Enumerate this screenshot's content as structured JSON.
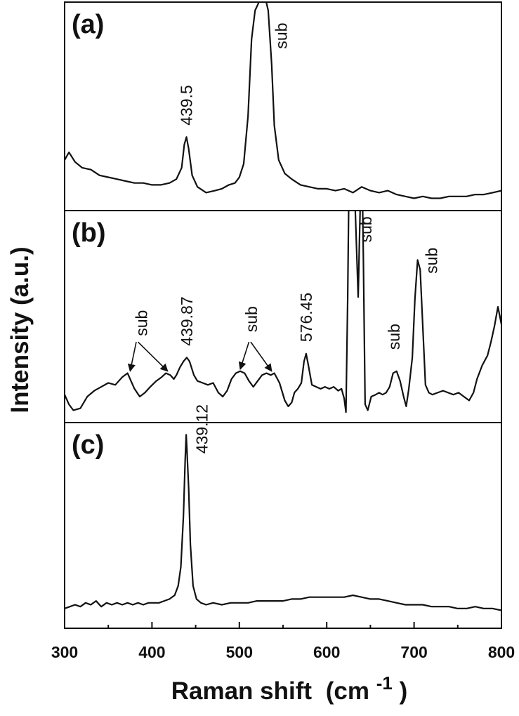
{
  "chart_data": {
    "type": "line",
    "xlabel": "Raman shift",
    "xlabel_unit": "(cm",
    "xlabel_unit_exp": "-1",
    "xlabel_unit_close": ")",
    "ylabel": "Intensity (a.u.)",
    "xlim": [
      300,
      800
    ],
    "xticks": [
      300,
      400,
      500,
      600,
      700,
      800
    ],
    "grid": false,
    "panels": [
      {
        "label": "(a)",
        "ylim": [
          0,
          100
        ],
        "points": [
          [
            300,
            22
          ],
          [
            305,
            26
          ],
          [
            312,
            21
          ],
          [
            320,
            18
          ],
          [
            330,
            17
          ],
          [
            340,
            14
          ],
          [
            350,
            13
          ],
          [
            360,
            12
          ],
          [
            370,
            11
          ],
          [
            380,
            10
          ],
          [
            390,
            10
          ],
          [
            400,
            9
          ],
          [
            410,
            9
          ],
          [
            420,
            10
          ],
          [
            428,
            12
          ],
          [
            434,
            18
          ],
          [
            437,
            30
          ],
          [
            439.5,
            34
          ],
          [
            442,
            28
          ],
          [
            446,
            14
          ],
          [
            452,
            8
          ],
          [
            462,
            5
          ],
          [
            472,
            6
          ],
          [
            480,
            7
          ],
          [
            488,
            9
          ],
          [
            495,
            10
          ],
          [
            500,
            13
          ],
          [
            505,
            20
          ],
          [
            510,
            45
          ],
          [
            514,
            85
          ],
          [
            518,
            100
          ],
          [
            522,
            104
          ],
          [
            528,
            110
          ],
          [
            533,
            100
          ],
          [
            537,
            72
          ],
          [
            540,
            40
          ],
          [
            545,
            22
          ],
          [
            552,
            15
          ],
          [
            560,
            12
          ],
          [
            570,
            9
          ],
          [
            580,
            8
          ],
          [
            590,
            7
          ],
          [
            600,
            7
          ],
          [
            610,
            6
          ],
          [
            620,
            7
          ],
          [
            630,
            5
          ],
          [
            640,
            8
          ],
          [
            650,
            6
          ],
          [
            660,
            5
          ],
          [
            670,
            6
          ],
          [
            680,
            4
          ],
          [
            690,
            3
          ],
          [
            700,
            2
          ],
          [
            710,
            3
          ],
          [
            720,
            2
          ],
          [
            730,
            2
          ],
          [
            740,
            3
          ],
          [
            750,
            3
          ],
          [
            760,
            3
          ],
          [
            770,
            4
          ],
          [
            780,
            4
          ],
          [
            790,
            5
          ],
          [
            800,
            6
          ]
        ],
        "annotations": [
          {
            "text": "439.5",
            "x": 439.5,
            "y": 40
          },
          {
            "text": "sub",
            "x": 548,
            "y": 80
          }
        ]
      },
      {
        "label": "(b)",
        "ylim": [
          0,
          100
        ],
        "points": [
          [
            300,
            10
          ],
          [
            305,
            5
          ],
          [
            310,
            2
          ],
          [
            318,
            3
          ],
          [
            326,
            9
          ],
          [
            334,
            12
          ],
          [
            342,
            14
          ],
          [
            350,
            16
          ],
          [
            358,
            15
          ],
          [
            366,
            19
          ],
          [
            372,
            21
          ],
          [
            376,
            17
          ],
          [
            380,
            13
          ],
          [
            386,
            9
          ],
          [
            392,
            11
          ],
          [
            398,
            14
          ],
          [
            405,
            17
          ],
          [
            411,
            19
          ],
          [
            416,
            21
          ],
          [
            421,
            20
          ],
          [
            425,
            18
          ],
          [
            428,
            20
          ],
          [
            432,
            24
          ],
          [
            436,
            27
          ],
          [
            439.87,
            29
          ],
          [
            443,
            27
          ],
          [
            448,
            20
          ],
          [
            452,
            17
          ],
          [
            458,
            16
          ],
          [
            464,
            15
          ],
          [
            470,
            16
          ],
          [
            476,
            11
          ],
          [
            481,
            9
          ],
          [
            486,
            12
          ],
          [
            491,
            18
          ],
          [
            496,
            21
          ],
          [
            501,
            22
          ],
          [
            506,
            21
          ],
          [
            511,
            17
          ],
          [
            516,
            14
          ],
          [
            521,
            17
          ],
          [
            526,
            20
          ],
          [
            531,
            21
          ],
          [
            536,
            20
          ],
          [
            540,
            21
          ],
          [
            546,
            16
          ],
          [
            552,
            7
          ],
          [
            556,
            4
          ],
          [
            560,
            6
          ],
          [
            563,
            11
          ],
          [
            567,
            13
          ],
          [
            571,
            16
          ],
          [
            574,
            27
          ],
          [
            576.45,
            31
          ],
          [
            579,
            25
          ],
          [
            583,
            15
          ],
          [
            588,
            14
          ],
          [
            593,
            13
          ],
          [
            598,
            14
          ],
          [
            603,
            13
          ],
          [
            608,
            14
          ],
          [
            613,
            12
          ],
          [
            617,
            13
          ],
          [
            620,
            8
          ],
          [
            622,
            1
          ],
          [
            624,
            60
          ],
          [
            626,
            140
          ],
          [
            630,
            140
          ],
          [
            633,
            100
          ],
          [
            636,
            60
          ],
          [
            640,
            140
          ],
          [
            642,
            80
          ],
          [
            644,
            5
          ],
          [
            647,
            2
          ],
          [
            651,
            9
          ],
          [
            656,
            10
          ],
          [
            660,
            11
          ],
          [
            664,
            10
          ],
          [
            668,
            11
          ],
          [
            672,
            14
          ],
          [
            676,
            21
          ],
          [
            680,
            22
          ],
          [
            684,
            17
          ],
          [
            688,
            9
          ],
          [
            691,
            4
          ],
          [
            694,
            13
          ],
          [
            698,
            29
          ],
          [
            701,
            59
          ],
          [
            704,
            79
          ],
          [
            707,
            74
          ],
          [
            710,
            45
          ],
          [
            713,
            15
          ],
          [
            717,
            11
          ],
          [
            721,
            10
          ],
          [
            727,
            11
          ],
          [
            733,
            12
          ],
          [
            739,
            11
          ],
          [
            745,
            10
          ],
          [
            751,
            11
          ],
          [
            757,
            9
          ],
          [
            763,
            7
          ],
          [
            768,
            11
          ],
          [
            772,
            18
          ],
          [
            778,
            25
          ],
          [
            784,
            30
          ],
          [
            788,
            37
          ],
          [
            792,
            45
          ],
          [
            796,
            55
          ],
          [
            800,
            46
          ]
        ],
        "annotations": [
          {
            "text": "sub",
            "x": 388,
            "y": 40
          },
          {
            "text": "439.87",
            "x": 439.87,
            "y": 35
          },
          {
            "text": "sub",
            "x": 514,
            "y": 42
          },
          {
            "text": "576.45",
            "x": 576.45,
            "y": 37
          },
          {
            "text": "sub",
            "x": 645,
            "y": 88
          },
          {
            "text": "sub",
            "x": 677,
            "y": 33
          },
          {
            "text": "sub",
            "x": 720,
            "y": 72
          }
        ],
        "arrows": [
          {
            "from_label": "sub",
            "from_x": 382,
            "from_y": 37,
            "to_x": 375,
            "to_y": 22
          },
          {
            "from_label": "sub",
            "from_x": 384,
            "from_y": 37,
            "to_x": 418,
            "to_y": 22
          },
          {
            "from_label": "sub",
            "from_x": 511,
            "from_y": 37,
            "to_x": 501,
            "to_y": 23
          },
          {
            "from_label": "sub",
            "from_x": 513,
            "from_y": 37,
            "to_x": 537,
            "to_y": 22
          }
        ]
      },
      {
        "label": "(c)",
        "ylim": [
          0,
          100
        ],
        "points": [
          [
            300,
            6
          ],
          [
            306,
            7
          ],
          [
            312,
            8
          ],
          [
            318,
            7
          ],
          [
            324,
            9
          ],
          [
            330,
            8
          ],
          [
            336,
            10
          ],
          [
            342,
            7
          ],
          [
            348,
            9
          ],
          [
            354,
            8
          ],
          [
            360,
            9
          ],
          [
            366,
            8
          ],
          [
            372,
            9
          ],
          [
            378,
            8
          ],
          [
            384,
            9
          ],
          [
            390,
            8
          ],
          [
            396,
            9
          ],
          [
            402,
            9
          ],
          [
            408,
            9
          ],
          [
            414,
            10
          ],
          [
            420,
            11
          ],
          [
            426,
            13
          ],
          [
            430,
            18
          ],
          [
            433,
            28
          ],
          [
            436,
            55
          ],
          [
            438,
            85
          ],
          [
            439.12,
            98
          ],
          [
            440,
            90
          ],
          [
            442,
            70
          ],
          [
            444,
            40
          ],
          [
            447,
            18
          ],
          [
            451,
            11
          ],
          [
            456,
            9
          ],
          [
            462,
            8
          ],
          [
            470,
            9
          ],
          [
            480,
            8
          ],
          [
            490,
            9
          ],
          [
            500,
            9
          ],
          [
            510,
            9
          ],
          [
            520,
            10
          ],
          [
            530,
            10
          ],
          [
            540,
            10
          ],
          [
            550,
            10
          ],
          [
            560,
            11
          ],
          [
            570,
            11
          ],
          [
            580,
            12
          ],
          [
            590,
            12
          ],
          [
            600,
            12
          ],
          [
            610,
            12
          ],
          [
            620,
            12
          ],
          [
            630,
            13
          ],
          [
            640,
            12
          ],
          [
            650,
            11
          ],
          [
            660,
            11
          ],
          [
            670,
            10
          ],
          [
            680,
            9
          ],
          [
            690,
            8
          ],
          [
            700,
            8
          ],
          [
            710,
            8
          ],
          [
            720,
            7
          ],
          [
            730,
            7
          ],
          [
            740,
            7
          ],
          [
            750,
            6
          ],
          [
            760,
            6
          ],
          [
            770,
            7
          ],
          [
            780,
            6
          ],
          [
            790,
            6
          ],
          [
            800,
            5
          ]
        ],
        "annotations": [
          {
            "text": "439.12",
            "x": 457,
            "y": 88
          }
        ]
      }
    ]
  }
}
